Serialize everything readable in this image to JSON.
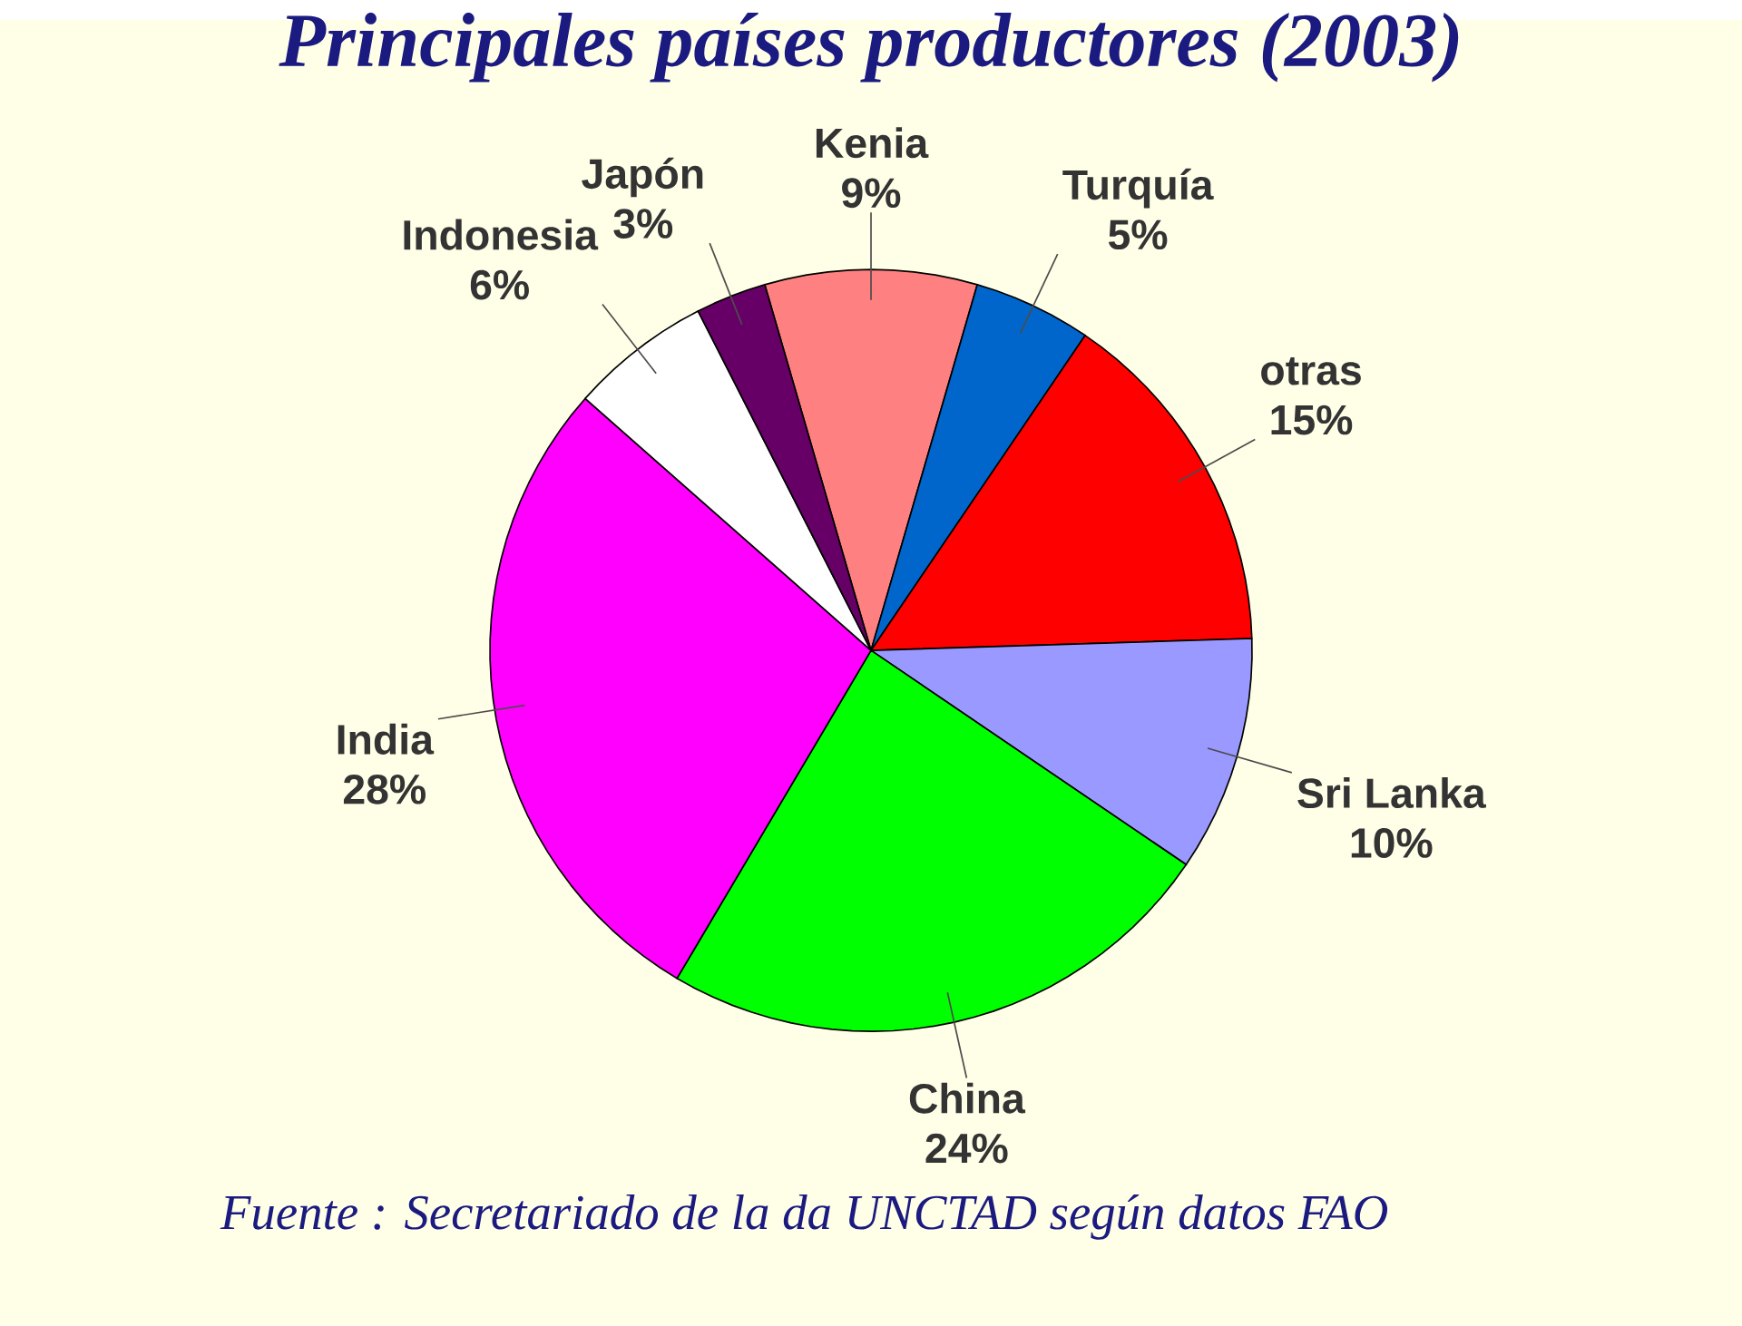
{
  "chart_data": {
    "type": "pie",
    "title": "Principales países productores (2003)",
    "categories": [
      "Kenia",
      "Turquía",
      "otras",
      "Sri Lanka",
      "China",
      "India",
      "Indonesia",
      "Japón"
    ],
    "values": [
      9,
      5,
      15,
      10,
      24,
      28,
      6,
      3
    ],
    "value_labels": [
      "9%",
      "5%",
      "15%",
      "10%",
      "24%",
      "28%",
      "6%",
      "3%"
    ],
    "colors": [
      "#ff8080",
      "#0066cc",
      "#ff0000",
      "#9999ff",
      "#00ff00",
      "#ff00ff",
      "#ffffff",
      "#660066"
    ],
    "annotations": [
      "Fuente : Secretariado de la da UNCTAD según datos FAO"
    ]
  }
}
